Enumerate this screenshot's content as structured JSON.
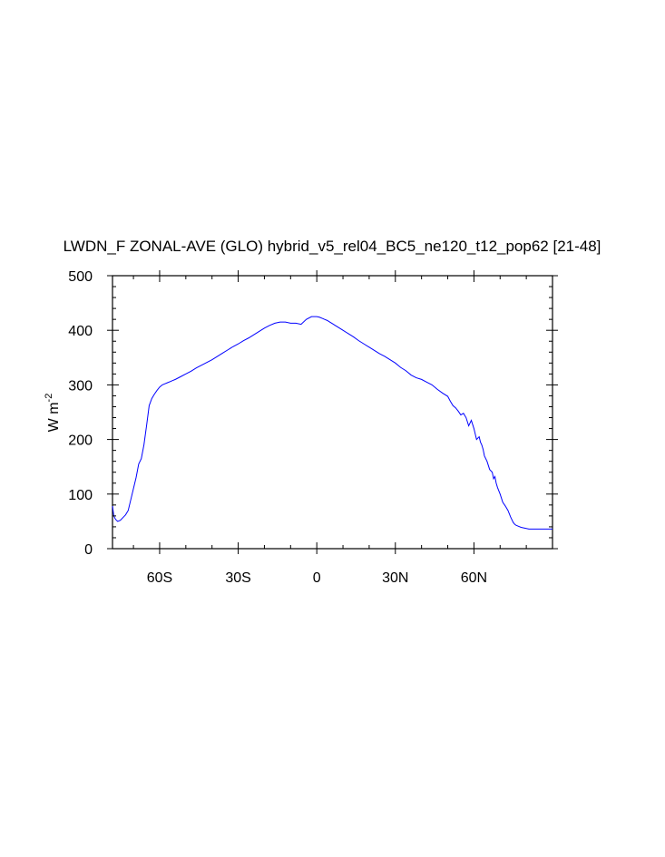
{
  "chart_data": {
    "type": "line",
    "title": "LWDN_F ZONAL-AVE (GLO) hybrid_v5_rel04_BC5_ne120_t12_pop62 [21-48]",
    "ylabel": "W m",
    "ylabel_exponent": "-2",
    "xlim": [
      -78,
      90
    ],
    "ylim": [
      0,
      500
    ],
    "x_ticks": [
      {
        "value": -60,
        "label": "60S"
      },
      {
        "value": -30,
        "label": "30S"
      },
      {
        "value": 0,
        "label": "0"
      },
      {
        "value": 30,
        "label": "30N"
      },
      {
        "value": 60,
        "label": "60N"
      }
    ],
    "y_ticks": [
      {
        "value": 0,
        "label": "0"
      },
      {
        "value": 100,
        "label": "100"
      },
      {
        "value": 200,
        "label": "200"
      },
      {
        "value": 300,
        "label": "300"
      },
      {
        "value": 400,
        "label": "400"
      },
      {
        "value": 500,
        "label": "500"
      }
    ],
    "line_color": "#0000ff",
    "series": [
      {
        "x": [
          -78,
          -77.5,
          -77,
          -76.5,
          -76,
          -75,
          -74,
          -73,
          -72,
          -71,
          -70,
          -69,
          -68,
          -67,
          -66,
          -65,
          -64,
          -63,
          -62,
          -61,
          -60,
          -59,
          -58,
          -57,
          -56,
          -55,
          -54,
          -52,
          -50,
          -48,
          -46,
          -44,
          -42,
          -40,
          -38,
          -36,
          -34,
          -32,
          -30,
          -28,
          -26,
          -24,
          -22,
          -20,
          -18,
          -16,
          -14,
          -12,
          -10,
          -8,
          -6,
          -4,
          -2,
          0,
          1,
          2,
          3,
          4,
          5,
          6,
          7,
          8,
          10,
          12,
          14,
          16,
          18,
          20,
          22,
          24,
          26,
          28,
          30,
          32,
          34,
          36,
          38,
          40,
          42,
          44,
          46,
          48,
          50,
          51,
          52,
          53,
          54,
          55,
          56,
          57,
          58,
          59,
          60,
          61,
          62,
          62.5,
          63,
          63.5,
          64,
          65,
          66,
          67,
          67.5,
          68,
          68.5,
          69,
          70,
          71,
          72,
          73,
          74,
          75,
          75.5,
          76,
          77,
          78,
          79,
          80,
          81,
          82,
          83,
          84,
          85,
          86,
          87,
          88,
          89,
          90
        ],
        "y": [
          78,
          60,
          55,
          52,
          50,
          52,
          57,
          62,
          70,
          90,
          110,
          130,
          155,
          165,
          190,
          225,
          262,
          275,
          283,
          290,
          296,
          300,
          302,
          304,
          306,
          308,
          310,
          315,
          320,
          325,
          331,
          336,
          341,
          346,
          352,
          358,
          364,
          370,
          375,
          381,
          386,
          392,
          398,
          404,
          409,
          413,
          415,
          415,
          413,
          413,
          411,
          420,
          425,
          425,
          424,
          422,
          420,
          418,
          415,
          412,
          409,
          406,
          400,
          394,
          388,
          381,
          375,
          369,
          363,
          357,
          352,
          346,
          340,
          332,
          326,
          318,
          313,
          310,
          305,
          300,
          292,
          285,
          279,
          270,
          262,
          258,
          252,
          245,
          248,
          240,
          225,
          235,
          220,
          200,
          205,
          195,
          190,
          182,
          170,
          160,
          145,
          140,
          128,
          132,
          120,
          112,
          100,
          85,
          78,
          70,
          58,
          48,
          45,
          43,
          41,
          39,
          38,
          37,
          36,
          36,
          36,
          36,
          36,
          36,
          36,
          36,
          36,
          36
        ]
      }
    ]
  }
}
